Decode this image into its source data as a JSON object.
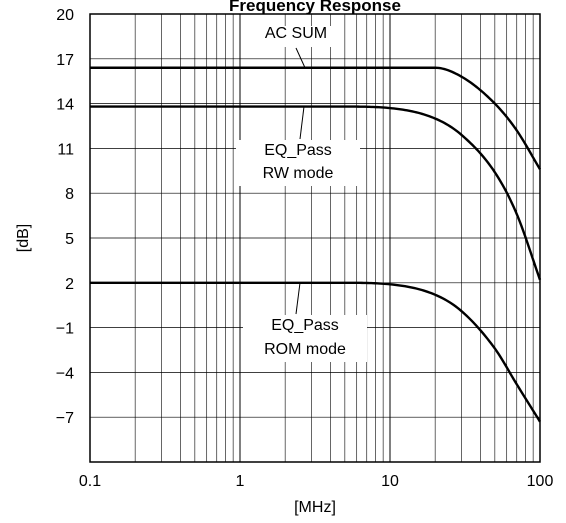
{
  "chart_data": {
    "type": "line",
    "title": "Frequency Response",
    "xlabel": "[MHz]",
    "ylabel": "[dB]",
    "xscale": "log",
    "xlim": [
      0.1,
      100
    ],
    "ylim": [
      -10,
      20
    ],
    "x_ticks": [
      "0.1",
      "1",
      "10",
      "100"
    ],
    "y_ticks": [
      "20",
      "17",
      "14",
      "11",
      "8",
      "5",
      "2",
      "−1",
      "−4",
      "−7"
    ],
    "y_tick_values": [
      20,
      17,
      14,
      11,
      8,
      5,
      2,
      -1,
      -4,
      -7
    ],
    "grid": true,
    "line_color": "#000000",
    "series": [
      {
        "name": "AC SUM",
        "x": [
          0.1,
          10,
          20,
          30,
          50,
          70,
          100
        ],
        "y": [
          16.4,
          16.4,
          16.4,
          15.8,
          14.0,
          12.2,
          9.6
        ]
      },
      {
        "name": "EQ_Pass RW mode",
        "x": [
          0.1,
          5,
          10,
          20,
          30,
          50,
          70,
          100
        ],
        "y": [
          13.8,
          13.8,
          13.7,
          13.0,
          11.9,
          9.4,
          6.6,
          2.2
        ]
      },
      {
        "name": "EQ_Pass ROM mode",
        "x": [
          0.1,
          5,
          10,
          20,
          30,
          50,
          70,
          100
        ],
        "y": [
          2.0,
          2.0,
          1.9,
          1.2,
          0.1,
          -2.4,
          -4.8,
          -7.3
        ]
      }
    ],
    "annotations": [
      {
        "lines": [
          "AC SUM"
        ],
        "series": 0
      },
      {
        "lines": [
          "EQ_Pass",
          "RW mode"
        ],
        "series": 1
      },
      {
        "lines": [
          "EQ_Pass",
          "ROM mode"
        ],
        "series": 2
      }
    ]
  }
}
